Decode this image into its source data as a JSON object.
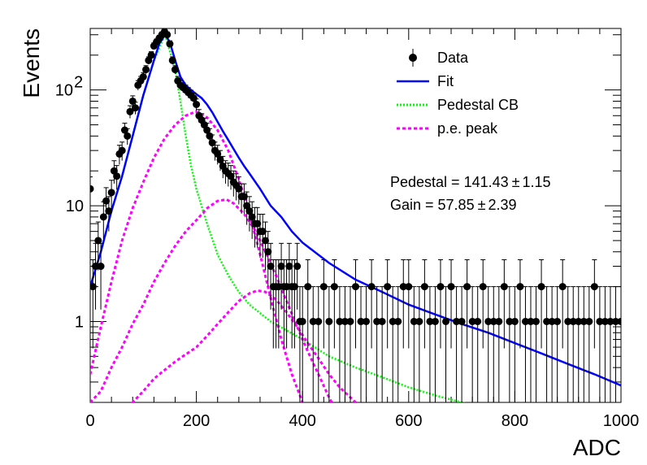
{
  "chart_data": {
    "type": "scatter",
    "xlabel": "ADC",
    "ylabel": "Events",
    "xlim": [
      0,
      1000
    ],
    "ylim": [
      0.2,
      340
    ],
    "yscale": "log",
    "grid": false,
    "legend_position": "top-right",
    "x_ticks": [
      {
        "value": 0,
        "label": "0"
      },
      {
        "value": 200,
        "label": "200"
      },
      {
        "value": 400,
        "label": "400"
      },
      {
        "value": 600,
        "label": "600"
      },
      {
        "value": 800,
        "label": "800"
      },
      {
        "value": 1000,
        "label": "1000"
      }
    ],
    "y_ticks": [
      {
        "value": 1,
        "label": "1"
      },
      {
        "value": 10,
        "label": "10"
      },
      {
        "value": 100,
        "label": "10",
        "exponent": "2"
      }
    ],
    "legend": [
      {
        "name": "Data",
        "color": "#000000",
        "style": "marker"
      },
      {
        "name": "Fit",
        "color": "#0000ff",
        "style": "solid"
      },
      {
        "name": "Pedestal CB",
        "color": "#00ff00",
        "style": "dotted"
      },
      {
        "name": "p.e. peak",
        "color": "#ff00ff",
        "style": "dashed"
      }
    ],
    "stats": [
      {
        "label": "Pedestal = 141.43",
        "pm": "±",
        "value": "1.15"
      },
      {
        "label": "Gain = 57.85",
        "pm": "±",
        "value": "2.39"
      }
    ],
    "series": [
      {
        "name": "Data",
        "type": "points",
        "color": "#000000",
        "x": [
          0,
          5,
          10,
          15,
          20,
          25,
          30,
          35,
          40,
          45,
          50,
          55,
          60,
          65,
          70,
          75,
          80,
          85,
          90,
          95,
          100,
          105,
          110,
          115,
          120,
          125,
          130,
          135,
          140,
          145,
          150,
          155,
          160,
          165,
          170,
          175,
          180,
          185,
          190,
          195,
          200,
          205,
          210,
          215,
          220,
          225,
          230,
          235,
          240,
          245,
          250,
          255,
          260,
          265,
          270,
          275,
          280,
          285,
          290,
          295,
          300,
          305,
          310,
          315,
          320,
          325,
          330,
          335,
          340,
          345,
          350,
          355,
          360,
          365,
          370,
          375,
          380,
          385,
          390,
          395,
          400,
          410,
          420,
          430,
          440,
          450,
          460,
          470,
          480,
          490,
          500,
          510,
          520,
          530,
          540,
          550,
          560,
          570,
          580,
          590,
          600,
          610,
          620,
          630,
          640,
          650,
          660,
          670,
          680,
          690,
          700,
          710,
          720,
          730,
          740,
          750,
          760,
          770,
          780,
          790,
          800,
          810,
          820,
          830,
          840,
          850,
          860,
          870,
          880,
          890,
          900,
          910,
          920,
          930,
          940,
          950,
          960,
          970,
          980,
          990,
          1000
        ],
        "y": [
          14,
          2,
          3,
          5,
          3,
          8,
          11,
          9,
          13,
          20,
          18,
          28,
          30,
          45,
          40,
          65,
          80,
          70,
          110,
          120,
          130,
          150,
          180,
          200,
          240,
          260,
          280,
          300,
          320,
          300,
          250,
          180,
          150,
          120,
          110,
          105,
          100,
          95,
          90,
          85,
          75,
          60,
          55,
          50,
          45,
          40,
          35,
          30,
          28,
          25,
          22,
          20,
          19,
          18,
          16,
          15,
          14,
          12,
          12,
          10,
          9,
          8,
          7,
          7,
          6,
          6,
          5,
          4,
          3,
          2,
          2,
          2,
          3,
          2,
          2,
          3,
          2,
          2,
          3,
          1,
          1,
          2,
          1,
          1,
          2,
          1,
          2,
          1,
          1,
          1,
          2,
          1,
          1,
          2,
          1,
          1,
          2,
          1,
          1,
          2,
          2,
          1,
          1,
          2,
          1,
          1,
          2,
          1,
          2,
          1,
          1,
          2,
          1,
          1,
          2,
          1,
          1,
          1,
          2,
          1,
          1,
          2,
          1,
          1,
          1,
          2,
          1,
          1,
          1,
          2,
          1,
          1,
          1,
          1,
          1,
          2,
          1,
          1,
          1,
          1,
          1
        ]
      },
      {
        "name": "Fit",
        "type": "line",
        "color": "#0000ff",
        "x": [
          0,
          20,
          40,
          60,
          80,
          100,
          120,
          130,
          141,
          150,
          160,
          170,
          180,
          190,
          200,
          210,
          220,
          230,
          240,
          250,
          260,
          270,
          280,
          290,
          300,
          320,
          340,
          360,
          380,
          400,
          450,
          500,
          550,
          600,
          650,
          700,
          750,
          800,
          850,
          900,
          950,
          1000
        ],
        "y": [
          2,
          4,
          9,
          18,
          40,
          90,
          180,
          250,
          300,
          260,
          180,
          130,
          110,
          100,
          92,
          85,
          75,
          64,
          53,
          44,
          37,
          31,
          26,
          22,
          19,
          14,
          10,
          8,
          6,
          4.8,
          3.2,
          2.3,
          1.8,
          1.4,
          1.15,
          0.95,
          0.8,
          0.65,
          0.53,
          0.43,
          0.35,
          0.28
        ]
      },
      {
        "name": "Pedestal CB",
        "type": "line",
        "color": "#00ff00",
        "x": [
          0,
          20,
          40,
          60,
          80,
          100,
          120,
          141,
          160,
          170,
          180,
          190,
          200,
          220,
          240,
          260,
          280,
          300,
          340,
          400,
          450,
          500,
          550,
          600,
          650,
          700,
          750
        ],
        "y": [
          2,
          4,
          9,
          18,
          40,
          90,
          180,
          300,
          150,
          80,
          40,
          22,
          14,
          7,
          3.8,
          2.5,
          1.8,
          1.4,
          1.0,
          0.7,
          0.5,
          0.4,
          0.33,
          0.27,
          0.23,
          0.2,
          0.17
        ]
      },
      {
        "name": "p.e. peak",
        "type": "line",
        "color": "#ff00ff",
        "x": [
          0,
          20,
          40,
          60,
          80,
          100,
          120,
          140,
          160,
          180,
          199,
          220,
          240,
          260,
          280,
          300,
          320,
          340,
          360,
          380,
          400,
          420
        ],
        "y": [
          0.35,
          0.9,
          2.2,
          5,
          9.5,
          16,
          26,
          38,
          50,
          60,
          65,
          58,
          45,
          30,
          17,
          8.5,
          3.8,
          1.6,
          0.7,
          0.35,
          0.2,
          0.1
        ]
      },
      {
        "name": "p.e. peak",
        "type": "line",
        "color": "#ff00ff",
        "x": [
          0,
          20,
          40,
          60,
          80,
          100,
          120,
          140,
          160,
          180,
          200,
          220,
          240,
          257,
          270,
          290,
          310,
          330,
          350,
          370,
          390,
          410,
          430,
          450,
          470
        ],
        "y": [
          0.2,
          0.25,
          0.4,
          0.6,
          0.95,
          1.4,
          2.2,
          3.2,
          4.5,
          6,
          7.5,
          9.5,
          11,
          11.3,
          10.5,
          8.5,
          6.2,
          4,
          2.5,
          1.5,
          0.9,
          0.55,
          0.35,
          0.22,
          0.15
        ]
      },
      {
        "name": "p.e. peak",
        "type": "line",
        "color": "#ff00ff",
        "x": [
          60,
          80,
          100,
          120,
          140,
          160,
          180,
          200,
          220,
          240,
          260,
          280,
          300,
          315,
          330,
          350,
          370,
          390,
          410,
          430,
          450,
          470,
          500,
          520,
          540
        ],
        "y": [
          0.15,
          0.2,
          0.25,
          0.32,
          0.38,
          0.45,
          0.52,
          0.6,
          0.75,
          0.95,
          1.2,
          1.5,
          1.75,
          1.85,
          1.8,
          1.55,
          1.2,
          0.9,
          0.65,
          0.48,
          0.35,
          0.27,
          0.2,
          0.17,
          0.15
        ]
      }
    ]
  }
}
